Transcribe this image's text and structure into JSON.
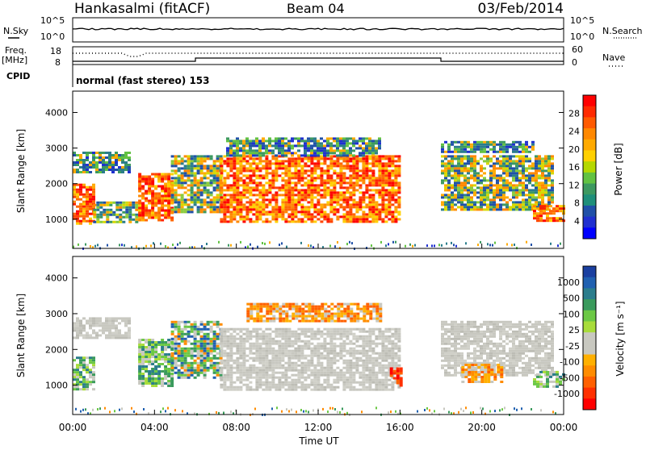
{
  "header": {
    "station": "Hankasalmi (fitACF)",
    "beam": "Beam 04",
    "date": "03/Feb/2014"
  },
  "summary": {
    "nsky_label": "N.Sky",
    "nsearch_label": "N.Search",
    "left_ticks": [
      "10^5",
      "10^0"
    ],
    "right_ticks": [
      "10^5",
      "10^0"
    ],
    "freq_label": "Freq.",
    "freq_unit": "[MHz]",
    "freq_ticks": [
      "18",
      "8"
    ],
    "nave_label": "Nave",
    "nave_ticks": [
      "60",
      "0"
    ],
    "cpid_label": "CPID",
    "cpid_text": "normal (fast stereo) 153"
  },
  "panels": {
    "power": {
      "ylabel": "Slant Range [km]",
      "yticks": [
        "4000",
        "3000",
        "2000",
        "1000"
      ],
      "cbar_label": "Power [dB]",
      "cbar_ticks": [
        "28",
        "24",
        "20",
        "16",
        "12",
        "8",
        "4"
      ],
      "cbar_colors": [
        "#ff0000",
        "#ff2a00",
        "#ff5a00",
        "#ff8800",
        "#ffaa00",
        "#ffd000",
        "#b5d800",
        "#62c242",
        "#3d9960",
        "#1f8f7a",
        "#2050a8",
        "#2030d0",
        "#0000ff"
      ]
    },
    "velocity": {
      "ylabel": "Slant Range [km]",
      "yticks": [
        "4000",
        "3000",
        "2000",
        "1000"
      ],
      "cbar_label": "Velocity [m s⁻¹]",
      "cbar_ticks": [
        "1000",
        "500",
        "100",
        "25",
        "-25",
        "-100",
        "-500",
        "-1000"
      ],
      "cbar_colors": [
        "#1a3fa0",
        "#2060b0",
        "#2b7d8c",
        "#3a9a5c",
        "#6cc845",
        "#a8dc3a",
        "#c8c8c0",
        "#c8c8c0",
        "#ffb000",
        "#ff8c00",
        "#ff6000",
        "#ff3000",
        "#ff0000"
      ]
    }
  },
  "xaxis": {
    "label": "Time UT",
    "ticks": [
      "00:00",
      "04:00",
      "08:00",
      "12:00",
      "16:00",
      "20:00",
      "00:00"
    ]
  },
  "chart_data": [
    {
      "type": "heatmap",
      "title": "Power",
      "x_unit": "hours UT",
      "y_unit": "km",
      "xlim": [
        0,
        24
      ],
      "ylim": [
        180,
        4600
      ],
      "ylabel": "Slant Range [km]",
      "colorbar": {
        "label": "Power [dB]",
        "range": [
          0,
          32
        ]
      },
      "echo_regions": [
        {
          "t": [
            0.0,
            1.0
          ],
          "r": [
            900,
            2000
          ],
          "level": "strong"
        },
        {
          "t": [
            0.0,
            2.8
          ],
          "r": [
            2300,
            2900
          ],
          "level": "weak"
        },
        {
          "t": [
            1.0,
            3.2
          ],
          "r": [
            950,
            1500
          ],
          "level": "medium"
        },
        {
          "t": [
            3.2,
            4.8
          ],
          "r": [
            1000,
            2300
          ],
          "level": "strong"
        },
        {
          "t": [
            4.8,
            7.2
          ],
          "r": [
            1200,
            2800
          ],
          "level": "medium"
        },
        {
          "t": [
            7.2,
            16.0
          ],
          "r": [
            900,
            2800
          ],
          "level": "strong"
        },
        {
          "t": [
            7.5,
            15.0
          ],
          "r": [
            2800,
            3300
          ],
          "level": "weak"
        },
        {
          "t": [
            18.0,
            23.5
          ],
          "r": [
            1300,
            2800
          ],
          "level": "medium"
        },
        {
          "t": [
            18.0,
            22.5
          ],
          "r": [
            2900,
            3200
          ],
          "level": "weak"
        },
        {
          "t": [
            22.5,
            24.0
          ],
          "r": [
            950,
            1400
          ],
          "level": "strong"
        }
      ]
    },
    {
      "type": "heatmap",
      "title": "Velocity",
      "x_unit": "hours UT",
      "y_unit": "km",
      "xlim": [
        0,
        24
      ],
      "ylim": [
        180,
        4600
      ],
      "ylabel": "Slant Range [km]",
      "colorbar": {
        "label": "Velocity [m s⁻¹]",
        "range": [
          -1000,
          1000
        ]
      },
      "echo_regions": [
        {
          "t": [
            0.0,
            1.0
          ],
          "r": [
            900,
            1800
          ],
          "level": "positive"
        },
        {
          "t": [
            0.0,
            2.8
          ],
          "r": [
            2300,
            2900
          ],
          "level": "near-zero"
        },
        {
          "t": [
            3.2,
            4.8
          ],
          "r": [
            1000,
            2300
          ],
          "level": "positive"
        },
        {
          "t": [
            4.8,
            7.2
          ],
          "r": [
            1200,
            2800
          ],
          "level": "mixed"
        },
        {
          "t": [
            7.2,
            16.0
          ],
          "r": [
            900,
            2600
          ],
          "level": "near-zero"
        },
        {
          "t": [
            8.5,
            15.0
          ],
          "r": [
            2800,
            3300
          ],
          "level": "negative"
        },
        {
          "t": [
            15.5,
            16.0
          ],
          "r": [
            1000,
            1500
          ],
          "level": "strongly-negative"
        },
        {
          "t": [
            18.0,
            23.5
          ],
          "r": [
            1300,
            2800
          ],
          "level": "near-zero"
        },
        {
          "t": [
            19.0,
            21.0
          ],
          "r": [
            1100,
            1600
          ],
          "level": "negative"
        },
        {
          "t": [
            22.5,
            24.0
          ],
          "r": [
            950,
            1400
          ],
          "level": "positive"
        }
      ]
    }
  ]
}
